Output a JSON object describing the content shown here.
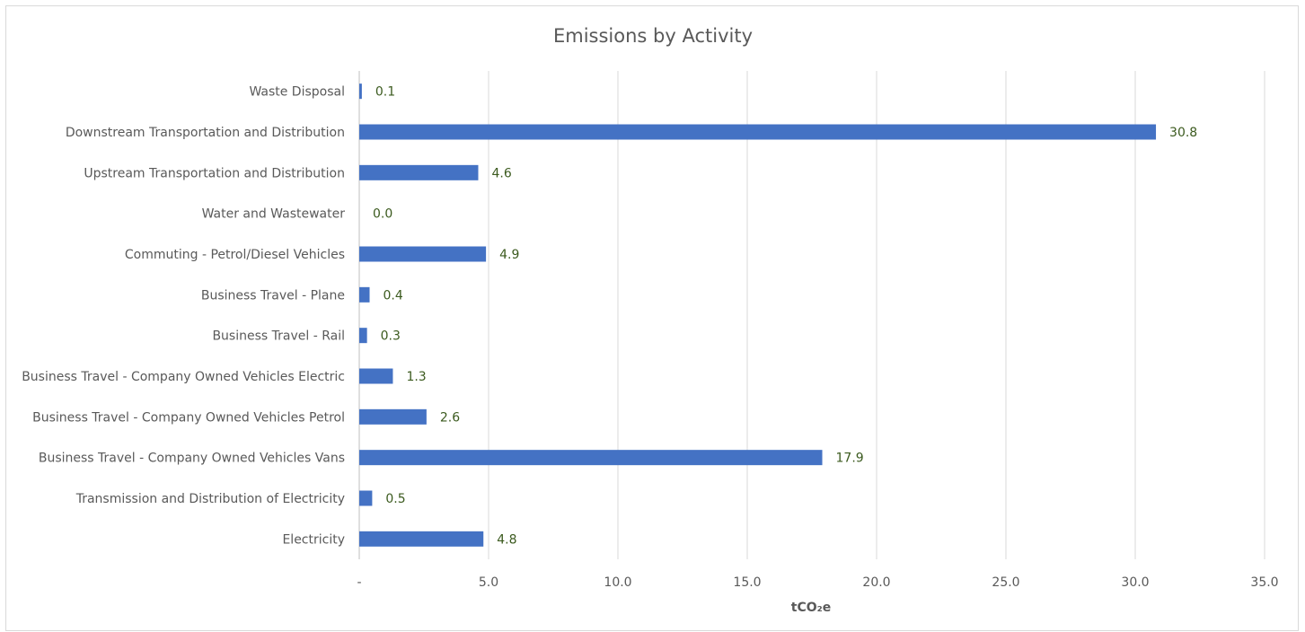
{
  "chart_data": {
    "type": "bar",
    "orientation": "horizontal",
    "title": "Emissions by Activity",
    "xlabel": "tCO₂e",
    "ylabel": "",
    "xlim": [
      0,
      35
    ],
    "x_ticks": [
      0,
      5,
      10,
      15,
      20,
      25,
      30,
      35
    ],
    "x_tick_labels": [
      "-",
      "5.0",
      "10.0",
      "15.0",
      "20.0",
      "25.0",
      "30.0",
      "35.0"
    ],
    "grid": true,
    "legend": "none",
    "bar_color": "#4472C4",
    "data_label_color": "#3b5a1e",
    "categories": [
      "Waste Disposal",
      "Downstream Transportation and Distribution",
      "Upstream Transportation and Distribution",
      "Water and Wastewater",
      "Commuting - Petrol/Diesel Vehicles",
      "Business Travel - Plane",
      "Business Travel - Rail",
      "Business Travel - Company Owned Vehicles Electric",
      "Business Travel - Company Owned Vehicles Petrol",
      "Business Travel - Company Owned Vehicles Vans",
      "Transmission and Distribution of Electricity",
      "Electricity"
    ],
    "values": [
      0.1,
      30.8,
      4.6,
      0.0,
      4.9,
      0.4,
      0.3,
      1.3,
      2.6,
      17.9,
      0.5,
      4.8
    ],
    "data_labels": [
      "0.1",
      "30.8",
      "4.6",
      "0.0",
      "4.9",
      "0.4",
      "0.3",
      "1.3",
      "2.6",
      "17.9",
      "0.5",
      "4.8"
    ]
  }
}
